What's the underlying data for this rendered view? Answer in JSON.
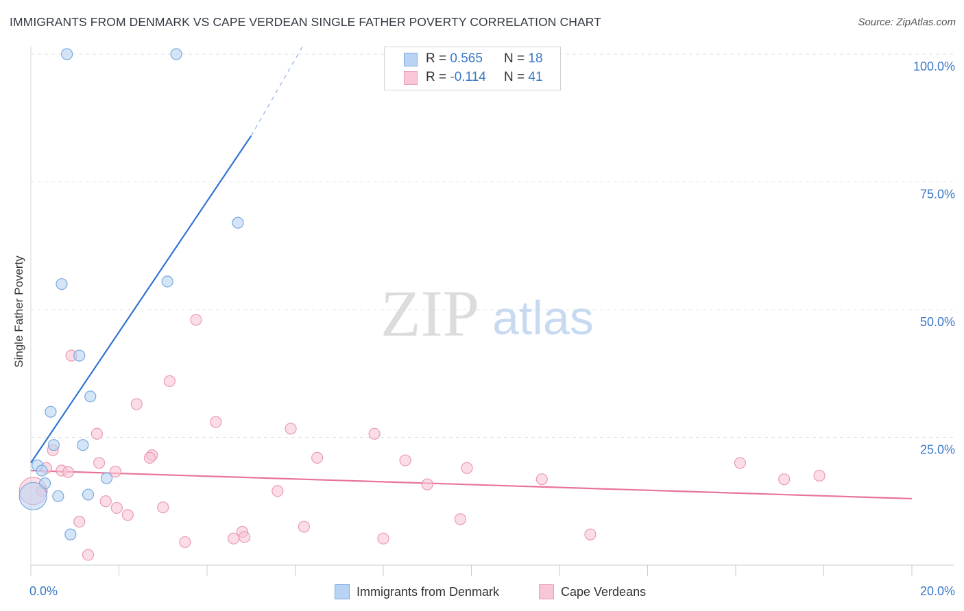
{
  "title": "IMMIGRANTS FROM DENMARK VS CAPE VERDEAN SINGLE FATHER POVERTY CORRELATION CHART",
  "source": "Source: ZipAtlas.com",
  "watermark": {
    "zip": "ZIP",
    "atlas": "atlas"
  },
  "colors": {
    "blue_fill": "#b8d3f3",
    "blue_stroke": "#7aa8dd",
    "blue_line": "#2f74cf",
    "pink_fill": "#f9c6d6",
    "pink_stroke": "#eb9ab4",
    "pink_line": "#e8739a",
    "axis_text": "#3a78c8",
    "grid": "#dde1e6"
  },
  "legend": {
    "blue": {
      "r_label": "R = ",
      "r_value": "0.565",
      "n_label": "N = ",
      "n_value": "18"
    },
    "pink": {
      "r_label": "R = ",
      "r_value": "-0.114",
      "n_label": "N = ",
      "n_value": "41"
    }
  },
  "chart_data": {
    "type": "scatter",
    "title": "IMMIGRANTS FROM DENMARK VS CAPE VERDEAN SINGLE FATHER POVERTY CORRELATION CHART",
    "xlabel": "",
    "ylabel": "Single Father Poverty",
    "xlim": [
      0,
      20
    ],
    "ylim": [
      0,
      102
    ],
    "x_tick_labels": [
      "0.0%",
      "20.0%"
    ],
    "y_ticks": [
      25,
      50,
      75,
      100
    ],
    "y_tick_labels": [
      "25.0%",
      "50.0%",
      "75.0%",
      "100.0%"
    ],
    "grid": true,
    "series": [
      {
        "name": "Immigrants from Denmark",
        "color": "blue",
        "points": [
          {
            "x": 0.82,
            "y": 100.0
          },
          {
            "x": 3.3,
            "y": 100.0
          },
          {
            "x": 4.7,
            "y": 67.0
          },
          {
            "x": 0.7,
            "y": 55.0
          },
          {
            "x": 3.1,
            "y": 55.5
          },
          {
            "x": 1.1,
            "y": 41.0
          },
          {
            "x": 1.35,
            "y": 33.0
          },
          {
            "x": 0.45,
            "y": 30.0
          },
          {
            "x": 0.52,
            "y": 23.5
          },
          {
            "x": 1.18,
            "y": 23.5
          },
          {
            "x": 0.15,
            "y": 19.5
          },
          {
            "x": 0.25,
            "y": 18.5
          },
          {
            "x": 1.72,
            "y": 17.0
          },
          {
            "x": 0.32,
            "y": 16.0
          },
          {
            "x": 0.62,
            "y": 13.5
          },
          {
            "x": 1.3,
            "y": 13.8
          },
          {
            "x": 0.05,
            "y": 13.5,
            "big": true
          },
          {
            "x": 0.9,
            "y": 6.0
          }
        ],
        "trend": {
          "x1": 0.0,
          "y1": 20.0,
          "x2": 5.0,
          "y2": 84.0,
          "dash_x2": 6.2,
          "dash_y2": 102.0
        }
      },
      {
        "name": "Cape Verdeans",
        "color": "pink",
        "points": [
          {
            "x": 3.75,
            "y": 48.0
          },
          {
            "x": 0.92,
            "y": 41.0
          },
          {
            "x": 3.15,
            "y": 36.0
          },
          {
            "x": 2.4,
            "y": 31.5
          },
          {
            "x": 4.2,
            "y": 28.0
          },
          {
            "x": 5.9,
            "y": 26.7
          },
          {
            "x": 7.8,
            "y": 25.7
          },
          {
            "x": 1.5,
            "y": 25.7
          },
          {
            "x": 0.5,
            "y": 22.5
          },
          {
            "x": 2.75,
            "y": 21.5
          },
          {
            "x": 2.7,
            "y": 21.0
          },
          {
            "x": 6.5,
            "y": 21.0
          },
          {
            "x": 8.5,
            "y": 20.5
          },
          {
            "x": 1.55,
            "y": 20.0
          },
          {
            "x": 0.35,
            "y": 19.0
          },
          {
            "x": 9.9,
            "y": 19.0
          },
          {
            "x": 0.7,
            "y": 18.5
          },
          {
            "x": 0.85,
            "y": 18.2
          },
          {
            "x": 1.92,
            "y": 18.3
          },
          {
            "x": 16.1,
            "y": 20.0
          },
          {
            "x": 17.9,
            "y": 17.5
          },
          {
            "x": 17.1,
            "y": 16.8
          },
          {
            "x": 11.6,
            "y": 16.8
          },
          {
            "x": 9.0,
            "y": 15.8
          },
          {
            "x": 5.6,
            "y": 14.5
          },
          {
            "x": 0.25,
            "y": 14.5
          },
          {
            "x": 1.7,
            "y": 12.5
          },
          {
            "x": 3.0,
            "y": 11.3
          },
          {
            "x": 1.95,
            "y": 11.2
          },
          {
            "x": 2.2,
            "y": 9.8
          },
          {
            "x": 9.75,
            "y": 9.0
          },
          {
            "x": 1.1,
            "y": 8.5
          },
          {
            "x": 6.2,
            "y": 7.5
          },
          {
            "x": 4.8,
            "y": 6.5
          },
          {
            "x": 12.7,
            "y": 6.0
          },
          {
            "x": 4.85,
            "y": 5.5
          },
          {
            "x": 4.6,
            "y": 5.2
          },
          {
            "x": 8.0,
            "y": 5.2
          },
          {
            "x": 3.5,
            "y": 4.5
          },
          {
            "x": 1.3,
            "y": 2.0
          },
          {
            "x": 0.05,
            "y": 14.5,
            "big": true
          }
        ],
        "trend": {
          "x1": 0.0,
          "y1": 18.5,
          "x2": 20.0,
          "y2": 13.0
        }
      }
    ]
  }
}
